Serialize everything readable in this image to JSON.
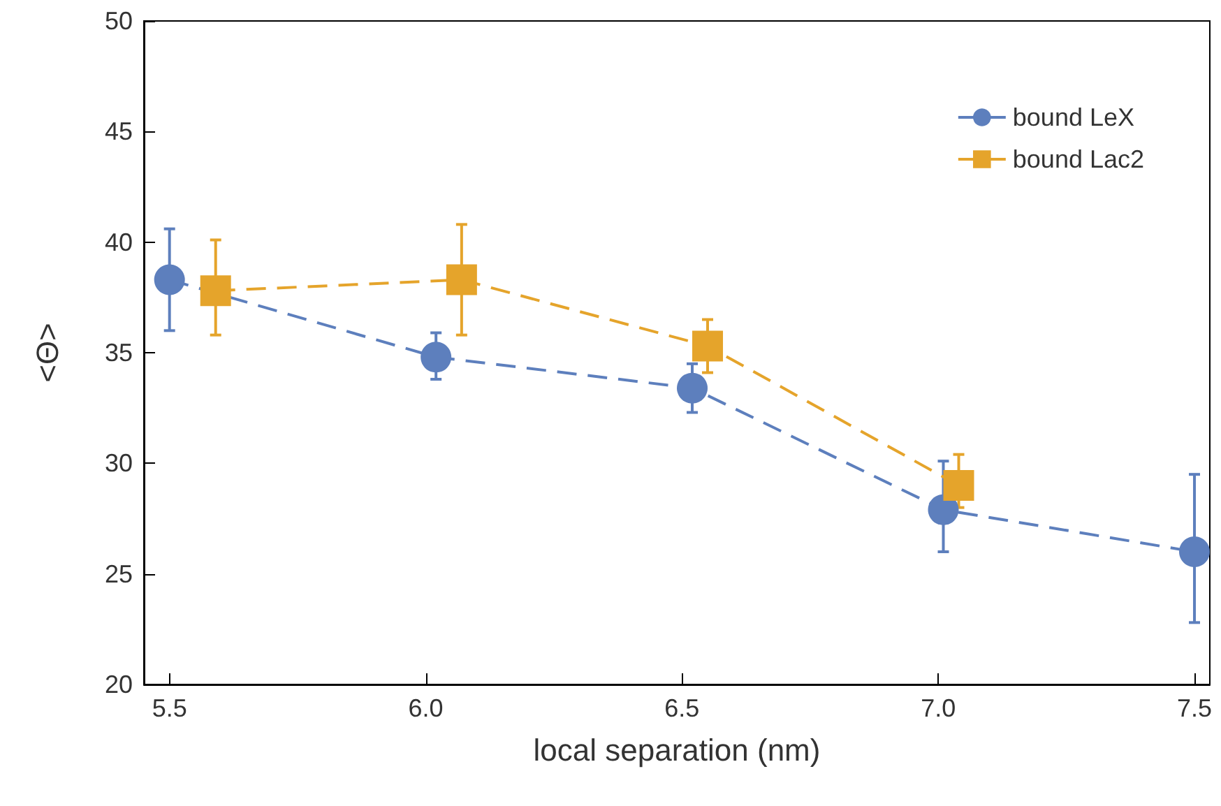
{
  "chart_data": {
    "type": "line",
    "xlabel": "local separation (nm)",
    "ylabel": "<Θ>",
    "xlim": [
      5.45,
      7.53
    ],
    "xticks": [
      {
        "value": 5.5,
        "label": "5.5"
      },
      {
        "value": 6,
        "label": "6.0"
      },
      {
        "value": 6.5,
        "label": "6.5"
      },
      {
        "value": 7,
        "label": "7.0"
      },
      {
        "value": 7.5,
        "label": "7.5"
      }
    ],
    "ylim": [
      20,
      50
    ],
    "yticks": [
      20,
      25,
      30,
      35,
      40,
      45,
      50
    ],
    "grid": false,
    "legend": "top right",
    "line_style": "dashed",
    "series": [
      {
        "name": "bound LeX",
        "color": "#5d7fbd",
        "marker": "circle",
        "x": [
          5.5,
          6.02,
          6.52,
          7.01,
          7.5
        ],
        "values": [
          38.3,
          34.8,
          33.4,
          27.9,
          26.0
        ],
        "errors": [
          [
            36.0,
            40.6
          ],
          [
            33.8,
            35.9
          ],
          [
            32.3,
            34.5
          ],
          [
            26.0,
            30.1
          ],
          [
            22.8,
            29.5
          ]
        ]
      },
      {
        "name": "bound Lac2",
        "color": "#e5a42b",
        "marker": "square",
        "x": [
          5.59,
          6.07,
          6.55,
          7.04
        ],
        "values": [
          37.8,
          38.3,
          35.3,
          29.0
        ],
        "errors": [
          [
            35.8,
            40.1
          ],
          [
            35.8,
            40.8
          ],
          [
            34.1,
            36.5
          ],
          [
            28.0,
            30.4
          ]
        ]
      }
    ]
  }
}
